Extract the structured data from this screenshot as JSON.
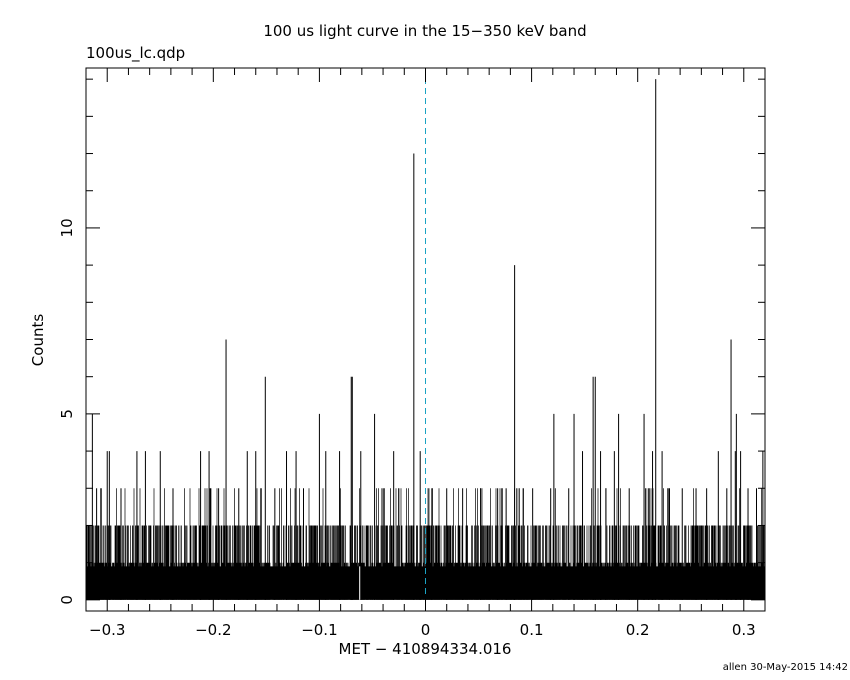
{
  "chart_data": {
    "type": "bar",
    "title": "100 us light curve in the 15−350 keV band",
    "subtitle": "100us_lc.qdp",
    "xlabel": "MET − 410894334.016",
    "ylabel": "Counts",
    "xlim": [
      -0.32,
      0.32
    ],
    "ylim": [
      -0.3,
      14.3
    ],
    "xticks": [
      -0.3,
      -0.2,
      -0.1,
      0,
      0.1,
      0.2,
      0.3
    ],
    "xtick_labels": [
      "−0.3",
      "−0.2",
      "−0.1",
      "0",
      "0.1",
      "0.2",
      "0.3"
    ],
    "yticks": [
      0,
      5,
      10
    ],
    "ytick_labels": [
      "0",
      "5",
      "10"
    ],
    "bin_width": 0.0001,
    "trigger_marker": {
      "x": 0,
      "style": "dashed",
      "color": "#1aa3c4"
    },
    "typical_counts_range": [
      0,
      2
    ],
    "peaks": [
      {
        "x": -0.314,
        "y": 5
      },
      {
        "x": -0.31,
        "y": 3
      },
      {
        "x": -0.3,
        "y": 4
      },
      {
        "x": -0.298,
        "y": 4
      },
      {
        "x": -0.287,
        "y": 3
      },
      {
        "x": -0.272,
        "y": 4
      },
      {
        "x": -0.264,
        "y": 4
      },
      {
        "x": -0.25,
        "y": 4
      },
      {
        "x": -0.238,
        "y": 3
      },
      {
        "x": -0.212,
        "y": 4
      },
      {
        "x": -0.204,
        "y": 4
      },
      {
        "x": -0.195,
        "y": 3
      },
      {
        "x": -0.188,
        "y": 7
      },
      {
        "x": -0.176,
        "y": 3
      },
      {
        "x": -0.168,
        "y": 4
      },
      {
        "x": -0.16,
        "y": 4
      },
      {
        "x": -0.151,
        "y": 6
      },
      {
        "x": -0.142,
        "y": 3
      },
      {
        "x": -0.131,
        "y": 4
      },
      {
        "x": -0.122,
        "y": 4
      },
      {
        "x": -0.115,
        "y": 3
      },
      {
        "x": -0.1,
        "y": 5
      },
      {
        "x": -0.094,
        "y": 4
      },
      {
        "x": -0.081,
        "y": 4
      },
      {
        "x": -0.07,
        "y": 6
      },
      {
        "x": -0.069,
        "y": 6
      },
      {
        "x": -0.061,
        "y": 4
      },
      {
        "x": -0.048,
        "y": 5
      },
      {
        "x": -0.041,
        "y": 3
      },
      {
        "x": -0.03,
        "y": 4
      },
      {
        "x": -0.011,
        "y": 12
      },
      {
        "x": -0.005,
        "y": 4
      },
      {
        "x": 0.006,
        "y": 3
      },
      {
        "x": 0.02,
        "y": 3
      },
      {
        "x": 0.035,
        "y": 3
      },
      {
        "x": 0.052,
        "y": 3
      },
      {
        "x": 0.068,
        "y": 3
      },
      {
        "x": 0.076,
        "y": 3
      },
      {
        "x": 0.084,
        "y": 9
      },
      {
        "x": 0.101,
        "y": 3
      },
      {
        "x": 0.118,
        "y": 3
      },
      {
        "x": 0.121,
        "y": 5
      },
      {
        "x": 0.135,
        "y": 3
      },
      {
        "x": 0.14,
        "y": 5
      },
      {
        "x": 0.148,
        "y": 4
      },
      {
        "x": 0.158,
        "y": 6
      },
      {
        "x": 0.16,
        "y": 6
      },
      {
        "x": 0.165,
        "y": 4
      },
      {
        "x": 0.17,
        "y": 3
      },
      {
        "x": 0.178,
        "y": 4
      },
      {
        "x": 0.182,
        "y": 5
      },
      {
        "x": 0.192,
        "y": 3
      },
      {
        "x": 0.206,
        "y": 5
      },
      {
        "x": 0.21,
        "y": 3
      },
      {
        "x": 0.214,
        "y": 4
      },
      {
        "x": 0.217,
        "y": 14
      },
      {
        "x": 0.223,
        "y": 4
      },
      {
        "x": 0.23,
        "y": 3
      },
      {
        "x": 0.242,
        "y": 3
      },
      {
        "x": 0.255,
        "y": 3
      },
      {
        "x": 0.265,
        "y": 3
      },
      {
        "x": 0.276,
        "y": 4
      },
      {
        "x": 0.284,
        "y": 3
      },
      {
        "x": 0.288,
        "y": 7
      },
      {
        "x": 0.292,
        "y": 4
      },
      {
        "x": 0.293,
        "y": 5
      },
      {
        "x": 0.297,
        "y": 4
      },
      {
        "x": 0.304,
        "y": 3
      },
      {
        "x": 0.312,
        "y": 3
      },
      {
        "x": 0.318,
        "y": 4
      }
    ]
  },
  "footer": {
    "stamp": "allen 30-May-2015 14:42"
  }
}
